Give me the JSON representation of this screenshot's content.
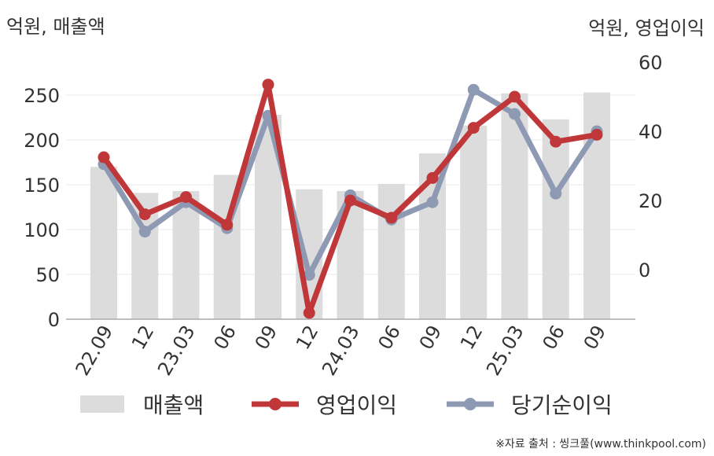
{
  "units": {
    "left": "억원, 매출액",
    "right": "억원, 영업이익"
  },
  "source": "※자료 출처 : 씽크풀(www.thinkpool.com)",
  "colors": {
    "revenue": "#dcdcdc",
    "operating": "#c0373a",
    "net": "#8e9ab4",
    "axis": "#aaaaaa",
    "grid": "#e8e8e8"
  },
  "chart_data": {
    "type": "bar+line",
    "categories": [
      "22.09",
      "12",
      "23.03",
      "06",
      "09",
      "12",
      "24.03",
      "06",
      "09",
      "12",
      "25.03",
      "06",
      "09"
    ],
    "left_axis": {
      "min": 0,
      "max": 250,
      "ticks": [
        "0",
        "50",
        "100",
        "150",
        "200",
        "250"
      ]
    },
    "right_axis": {
      "ticks": [
        "0",
        "20",
        "40",
        "60"
      ]
    },
    "series": [
      {
        "name": "매출액",
        "type": "bar",
        "axis": "left",
        "values": [
          170,
          141,
          143,
          161,
          228,
          145,
          143,
          151,
          185,
          216,
          252,
          223,
          253
        ]
      },
      {
        "name": "영업이익",
        "type": "line",
        "axis": "right",
        "values": [
          32.5,
          16,
          21,
          13,
          53.5,
          -12.5,
          20,
          15,
          26.5,
          41,
          50,
          37,
          39
        ]
      },
      {
        "name": "당기순이익",
        "type": "line",
        "axis": "right",
        "values": [
          30.5,
          11,
          19.5,
          12,
          44.5,
          -1.5,
          21.5,
          14.5,
          19.5,
          52,
          45,
          22,
          40
        ]
      }
    ]
  }
}
